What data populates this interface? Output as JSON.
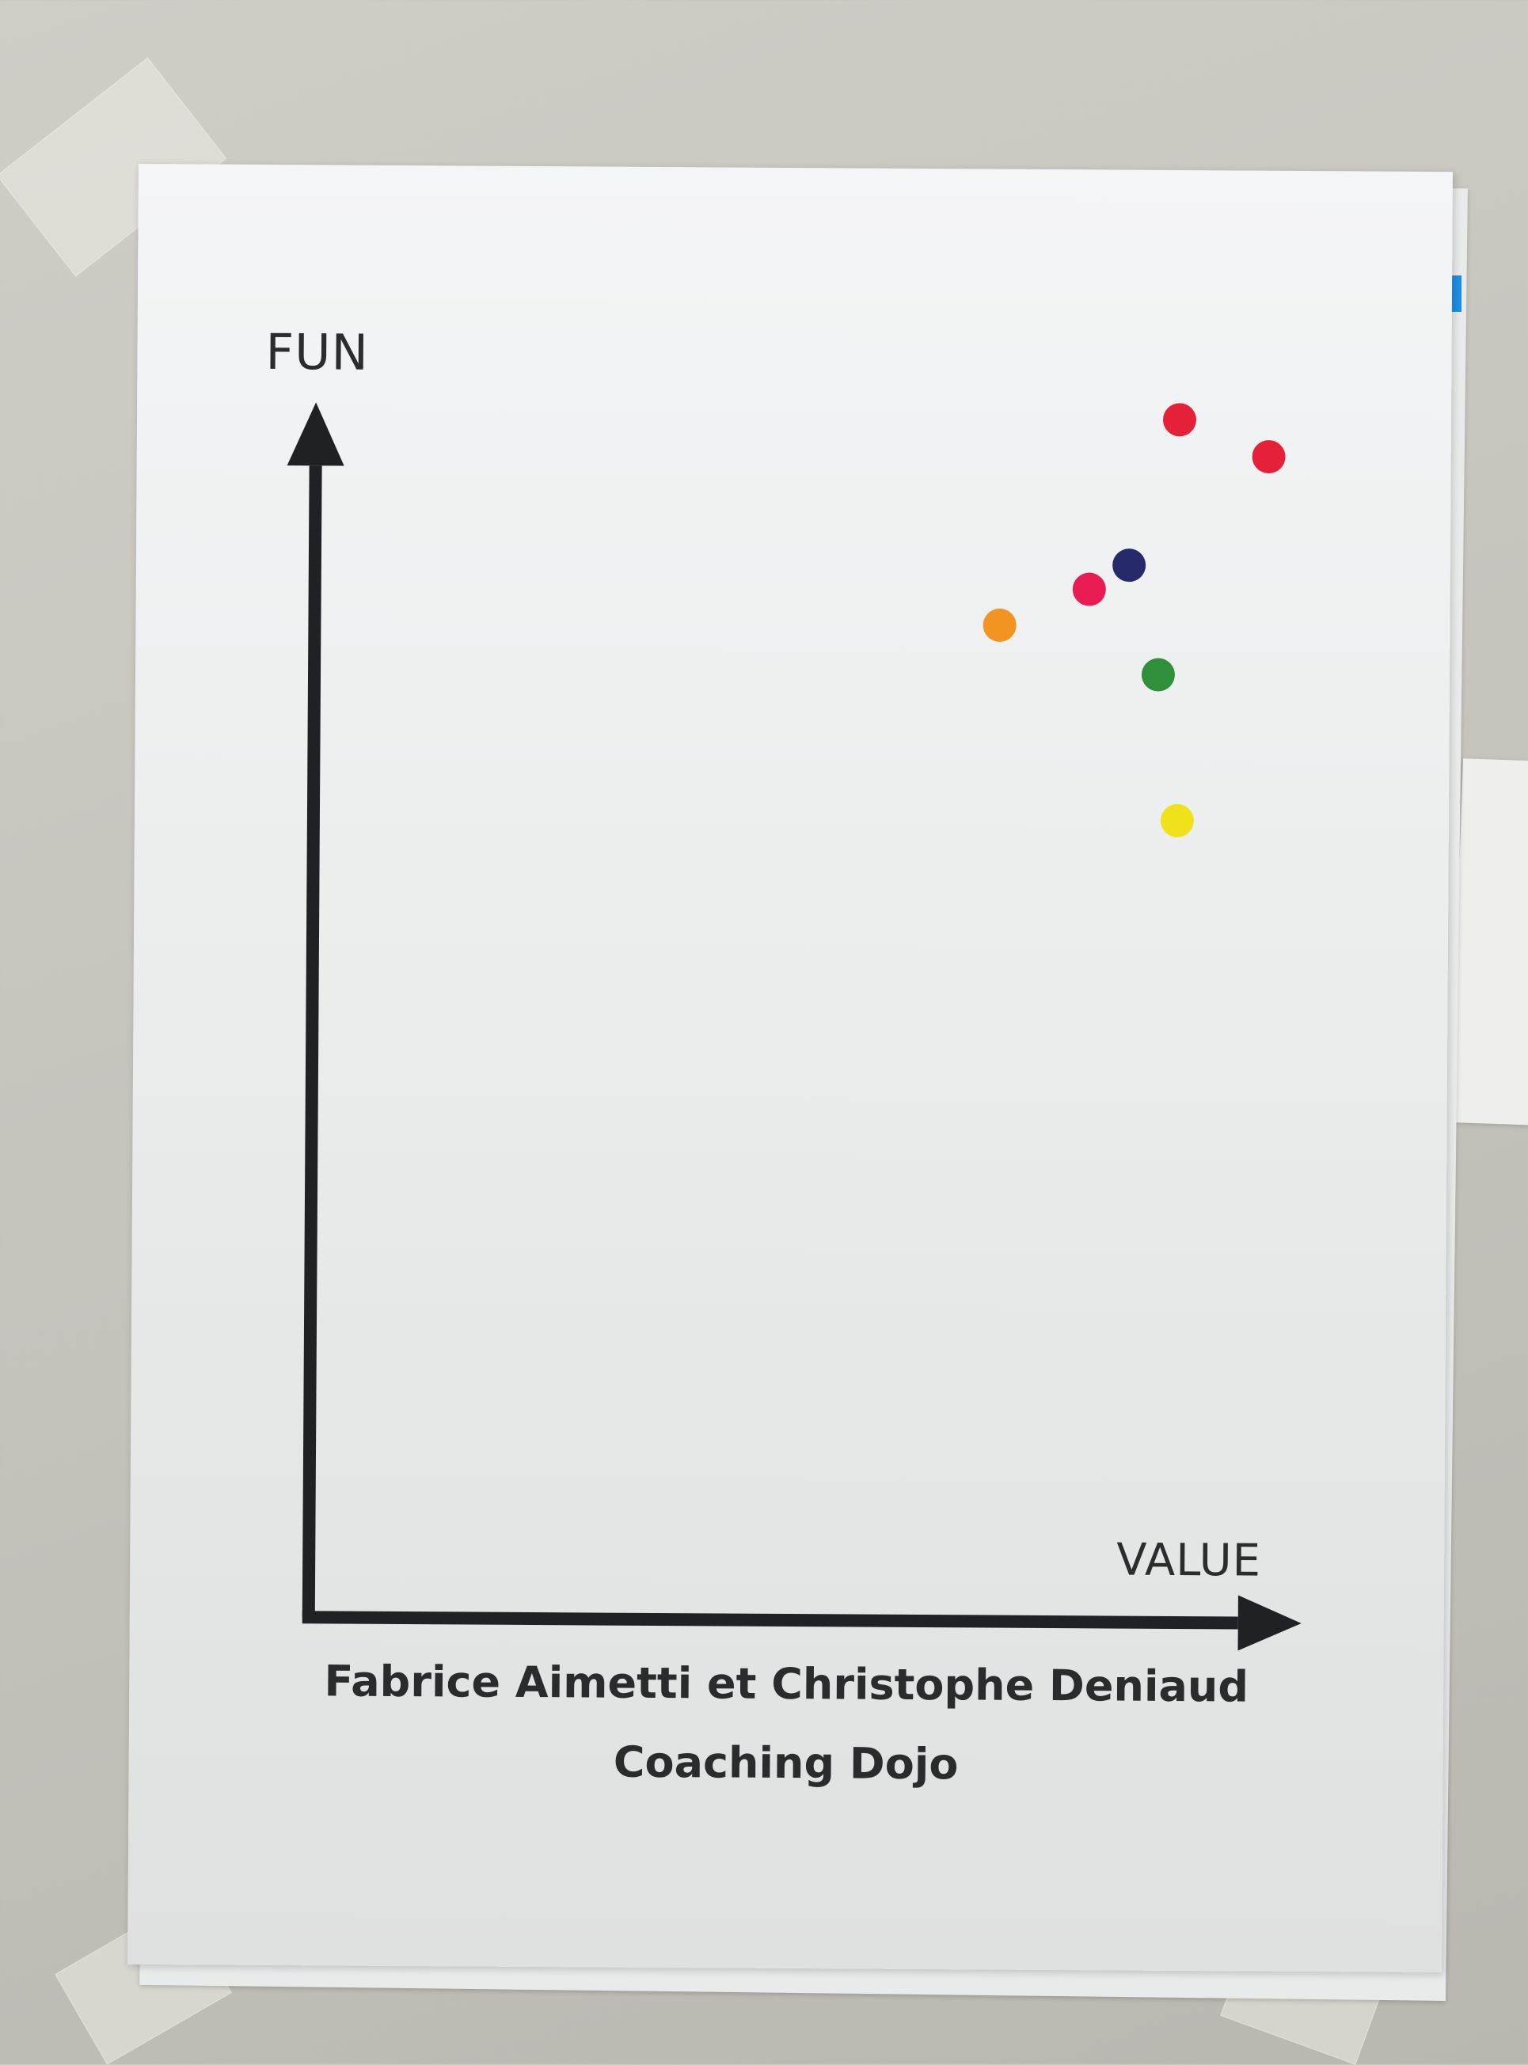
{
  "poster": {
    "y_axis_label": "FUN",
    "x_axis_label": "VALUE",
    "authors": "Fabrice Aimetti et Christophe Deniaud",
    "title": "Coaching Dojo"
  },
  "colors": {
    "wall": "#c8c6bf",
    "paper": "#eef0f0",
    "axis": "#1f2124",
    "pin_blue": "#1e8fe0"
  },
  "dots": [
    {
      "color": "#e5213a",
      "value": 0.87,
      "fun": 0.99
    },
    {
      "color": "#e5213a",
      "value": 0.96,
      "fun": 0.96
    },
    {
      "color": "#262a6b",
      "value": 0.82,
      "fun": 0.87
    },
    {
      "color": "#e81c52",
      "value": 0.78,
      "fun": 0.85
    },
    {
      "color": "#f39322",
      "value": 0.69,
      "fun": 0.82
    },
    {
      "color": "#2f8f3a",
      "value": 0.85,
      "fun": 0.78
    },
    {
      "color": "#f0e21a",
      "value": 0.87,
      "fun": 0.66
    }
  ]
}
